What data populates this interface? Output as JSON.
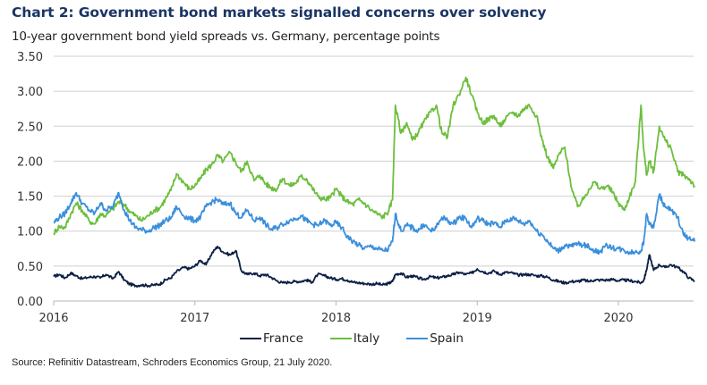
{
  "chart_data": {
    "type": "line",
    "title": "Chart 2: Government bond markets signalled concerns over solvency",
    "subtitle": "10-year government bond yield spreads vs. Germany, percentage points",
    "source": "Source: Refinitiv Datastream, Schroders Economics Group, 21 July 2020.",
    "xlabel": "",
    "ylabel": "",
    "xlim": [
      2016.0,
      2020.6
    ],
    "ylim": [
      0,
      3.5
    ],
    "grid": true,
    "legend_position": "bottom-center",
    "x_ticks": [
      2016,
      2017,
      2018,
      2019,
      2020
    ],
    "x_tick_labels": [
      "2016",
      "2017",
      "2018",
      "2019",
      "2020"
    ],
    "y_ticks": [
      0,
      0.5,
      1.0,
      1.5,
      2.0,
      2.5,
      3.0,
      3.5
    ],
    "y_tick_labels": [
      "0.00",
      "0.50",
      "1.00",
      "1.50",
      "2.00",
      "2.50",
      "3.00",
      "3.50"
    ],
    "x": [
      2016.0,
      2016.04,
      2016.08,
      2016.12,
      2016.16,
      2016.2,
      2016.25,
      2016.29,
      2016.33,
      2016.37,
      2016.42,
      2016.46,
      2016.5,
      2016.54,
      2016.58,
      2016.62,
      2016.67,
      2016.71,
      2016.75,
      2016.79,
      2016.83,
      2016.87,
      2016.92,
      2016.96,
      2017.0,
      2017.04,
      2017.08,
      2017.12,
      2017.16,
      2017.2,
      2017.25,
      2017.29,
      2017.33,
      2017.37,
      2017.42,
      2017.46,
      2017.5,
      2017.54,
      2017.58,
      2017.62,
      2017.67,
      2017.71,
      2017.75,
      2017.79,
      2017.83,
      2017.87,
      2017.92,
      2017.96,
      2018.0,
      2018.04,
      2018.08,
      2018.12,
      2018.16,
      2018.2,
      2018.25,
      2018.29,
      2018.33,
      2018.37,
      2018.4,
      2018.42,
      2018.46,
      2018.5,
      2018.54,
      2018.58,
      2018.62,
      2018.67,
      2018.71,
      2018.75,
      2018.79,
      2018.83,
      2018.87,
      2018.92,
      2018.96,
      2019.0,
      2019.04,
      2019.08,
      2019.12,
      2019.16,
      2019.2,
      2019.25,
      2019.29,
      2019.33,
      2019.37,
      2019.42,
      2019.46,
      2019.5,
      2019.54,
      2019.58,
      2019.62,
      2019.67,
      2019.71,
      2019.75,
      2019.79,
      2019.83,
      2019.87,
      2019.92,
      2019.96,
      2020.0,
      2020.04,
      2020.08,
      2020.12,
      2020.16,
      2020.18,
      2020.2,
      2020.22,
      2020.25,
      2020.29,
      2020.33,
      2020.37,
      2020.42,
      2020.46,
      2020.5,
      2020.54
    ],
    "series": [
      {
        "name": "France",
        "color": "#0b1f45",
        "values": [
          0.35,
          0.38,
          0.33,
          0.4,
          0.36,
          0.32,
          0.34,
          0.35,
          0.33,
          0.38,
          0.32,
          0.42,
          0.3,
          0.24,
          0.22,
          0.23,
          0.22,
          0.23,
          0.24,
          0.3,
          0.33,
          0.42,
          0.48,
          0.46,
          0.5,
          0.58,
          0.52,
          0.68,
          0.78,
          0.7,
          0.66,
          0.72,
          0.43,
          0.38,
          0.4,
          0.36,
          0.38,
          0.34,
          0.29,
          0.26,
          0.27,
          0.28,
          0.28,
          0.3,
          0.27,
          0.38,
          0.36,
          0.33,
          0.31,
          0.32,
          0.3,
          0.27,
          0.26,
          0.25,
          0.24,
          0.25,
          0.23,
          0.25,
          0.28,
          0.38,
          0.4,
          0.34,
          0.36,
          0.33,
          0.31,
          0.35,
          0.33,
          0.34,
          0.36,
          0.38,
          0.41,
          0.38,
          0.4,
          0.46,
          0.42,
          0.4,
          0.43,
          0.38,
          0.41,
          0.4,
          0.37,
          0.38,
          0.38,
          0.36,
          0.36,
          0.34,
          0.3,
          0.28,
          0.26,
          0.28,
          0.28,
          0.3,
          0.28,
          0.3,
          0.3,
          0.3,
          0.31,
          0.29,
          0.3,
          0.29,
          0.28,
          0.26,
          0.3,
          0.45,
          0.66,
          0.44,
          0.52,
          0.48,
          0.52,
          0.48,
          0.42,
          0.33,
          0.29
        ]
      },
      {
        "name": "Italy",
        "color": "#6cbf3c",
        "values": [
          0.97,
          1.07,
          1.05,
          1.24,
          1.4,
          1.3,
          1.15,
          1.1,
          1.25,
          1.22,
          1.32,
          1.42,
          1.38,
          1.28,
          1.22,
          1.15,
          1.22,
          1.3,
          1.33,
          1.45,
          1.58,
          1.82,
          1.7,
          1.6,
          1.65,
          1.75,
          1.88,
          1.95,
          2.08,
          2.0,
          2.12,
          1.98,
          1.85,
          2.0,
          1.72,
          1.8,
          1.68,
          1.62,
          1.6,
          1.75,
          1.65,
          1.68,
          1.78,
          1.75,
          1.62,
          1.5,
          1.45,
          1.48,
          1.6,
          1.5,
          1.42,
          1.38,
          1.45,
          1.4,
          1.3,
          1.25,
          1.2,
          1.28,
          1.45,
          2.8,
          2.4,
          2.55,
          2.3,
          2.4,
          2.55,
          2.7,
          2.8,
          2.4,
          2.35,
          2.8,
          2.95,
          3.2,
          2.95,
          2.7,
          2.55,
          2.6,
          2.65,
          2.5,
          2.6,
          2.7,
          2.65,
          2.75,
          2.8,
          2.65,
          2.3,
          2.05,
          1.9,
          2.1,
          2.2,
          1.6,
          1.35,
          1.45,
          1.6,
          1.7,
          1.6,
          1.65,
          1.55,
          1.4,
          1.3,
          1.5,
          1.7,
          2.8,
          2.15,
          1.8,
          2.0,
          1.85,
          2.5,
          2.3,
          2.2,
          1.85,
          1.8,
          1.75,
          1.65
        ]
      },
      {
        "name": "Spain",
        "color": "#3a8fdc",
        "values": [
          1.12,
          1.2,
          1.25,
          1.4,
          1.55,
          1.4,
          1.3,
          1.25,
          1.4,
          1.3,
          1.35,
          1.55,
          1.3,
          1.15,
          1.05,
          1.02,
          1.0,
          1.05,
          1.08,
          1.15,
          1.18,
          1.35,
          1.22,
          1.18,
          1.15,
          1.2,
          1.35,
          1.42,
          1.45,
          1.38,
          1.4,
          1.25,
          1.2,
          1.3,
          1.15,
          1.2,
          1.1,
          1.02,
          1.05,
          1.1,
          1.15,
          1.18,
          1.22,
          1.15,
          1.1,
          1.08,
          1.15,
          1.08,
          1.12,
          1.05,
          0.92,
          0.85,
          0.8,
          0.75,
          0.78,
          0.75,
          0.72,
          0.74,
          0.85,
          1.25,
          1.0,
          1.08,
          1.05,
          1.0,
          1.1,
          1.0,
          1.05,
          1.2,
          1.15,
          1.1,
          1.2,
          1.18,
          1.05,
          1.18,
          1.15,
          1.1,
          1.12,
          1.05,
          1.15,
          1.18,
          1.15,
          1.1,
          1.15,
          1.0,
          0.95,
          0.85,
          0.75,
          0.72,
          0.8,
          0.78,
          0.82,
          0.8,
          0.78,
          0.72,
          0.7,
          0.8,
          0.76,
          0.75,
          0.72,
          0.7,
          0.7,
          0.72,
          0.85,
          1.25,
          1.1,
          1.05,
          1.52,
          1.35,
          1.3,
          1.2,
          0.95,
          0.9,
          0.85
        ]
      }
    ]
  }
}
